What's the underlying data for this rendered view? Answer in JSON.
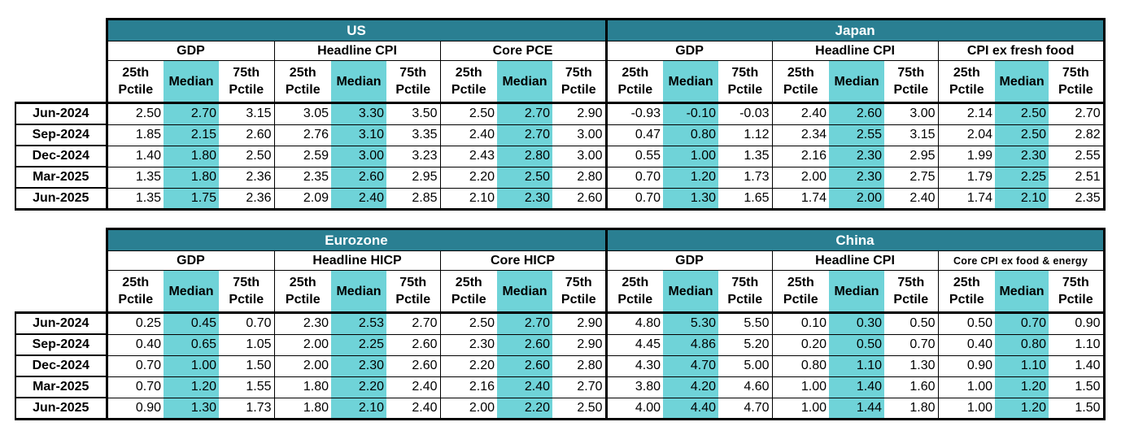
{
  "colors": {
    "region_header_bg": "#2a7f92",
    "median_highlight": "#6fd3d8"
  },
  "stat_labels": [
    "25th Pctile",
    "Median",
    "75th Pctile"
  ],
  "row_labels": [
    "Jun-2024",
    "Sep-2024",
    "Dec-2024",
    "Mar-2025",
    "Jun-2025"
  ],
  "tables": [
    {
      "regions": [
        {
          "name": "US",
          "groups": [
            {
              "name": "GDP",
              "rows": [
                [
                  "2.50",
                  "2.70",
                  "3.15"
                ],
                [
                  "1.85",
                  "2.15",
                  "2.60"
                ],
                [
                  "1.40",
                  "1.80",
                  "2.50"
                ],
                [
                  "1.35",
                  "1.80",
                  "2.36"
                ],
                [
                  "1.35",
                  "1.75",
                  "2.36"
                ]
              ]
            },
            {
              "name": "Headline CPI",
              "rows": [
                [
                  "3.05",
                  "3.30",
                  "3.50"
                ],
                [
                  "2.76",
                  "3.10",
                  "3.35"
                ],
                [
                  "2.59",
                  "3.00",
                  "3.23"
                ],
                [
                  "2.35",
                  "2.60",
                  "2.95"
                ],
                [
                  "2.09",
                  "2.40",
                  "2.85"
                ]
              ]
            },
            {
              "name": "Core PCE",
              "rows": [
                [
                  "2.50",
                  "2.70",
                  "2.90"
                ],
                [
                  "2.40",
                  "2.70",
                  "3.00"
                ],
                [
                  "2.43",
                  "2.80",
                  "3.00"
                ],
                [
                  "2.20",
                  "2.50",
                  "2.80"
                ],
                [
                  "2.10",
                  "2.30",
                  "2.60"
                ]
              ]
            }
          ]
        },
        {
          "name": "Japan",
          "groups": [
            {
              "name": "GDP",
              "rows": [
                [
                  "-0.93",
                  "-0.10",
                  "-0.03"
                ],
                [
                  "0.47",
                  "0.80",
                  "1.12"
                ],
                [
                  "0.55",
                  "1.00",
                  "1.35"
                ],
                [
                  "0.70",
                  "1.20",
                  "1.73"
                ],
                [
                  "0.70",
                  "1.30",
                  "1.65"
                ]
              ]
            },
            {
              "name": "Headline CPI",
              "rows": [
                [
                  "2.40",
                  "2.60",
                  "3.00"
                ],
                [
                  "2.34",
                  "2.55",
                  "3.15"
                ],
                [
                  "2.16",
                  "2.30",
                  "2.95"
                ],
                [
                  "2.00",
                  "2.30",
                  "2.75"
                ],
                [
                  "1.74",
                  "2.00",
                  "2.40"
                ]
              ]
            },
            {
              "name": "CPI ex fresh food",
              "rows": [
                [
                  "2.14",
                  "2.50",
                  "2.70"
                ],
                [
                  "2.04",
                  "2.50",
                  "2.82"
                ],
                [
                  "1.99",
                  "2.30",
                  "2.55"
                ],
                [
                  "1.79",
                  "2.25",
                  "2.51"
                ],
                [
                  "1.74",
                  "2.10",
                  "2.35"
                ]
              ]
            }
          ]
        }
      ]
    },
    {
      "regions": [
        {
          "name": "Eurozone",
          "groups": [
            {
              "name": "GDP",
              "rows": [
                [
                  "0.25",
                  "0.45",
                  "0.70"
                ],
                [
                  "0.40",
                  "0.65",
                  "1.05"
                ],
                [
                  "0.70",
                  "1.00",
                  "1.50"
                ],
                [
                  "0.70",
                  "1.20",
                  "1.55"
                ],
                [
                  "0.90",
                  "1.30",
                  "1.73"
                ]
              ]
            },
            {
              "name": "Headline HICP",
              "rows": [
                [
                  "2.30",
                  "2.53",
                  "2.70"
                ],
                [
                  "2.00",
                  "2.25",
                  "2.60"
                ],
                [
                  "2.00",
                  "2.30",
                  "2.60"
                ],
                [
                  "1.80",
                  "2.20",
                  "2.40"
                ],
                [
                  "1.80",
                  "2.10",
                  "2.40"
                ]
              ]
            },
            {
              "name": "Core HICP",
              "rows": [
                [
                  "2.50",
                  "2.70",
                  "2.90"
                ],
                [
                  "2.30",
                  "2.60",
                  "2.90"
                ],
                [
                  "2.20",
                  "2.60",
                  "2.80"
                ],
                [
                  "2.16",
                  "2.40",
                  "2.70"
                ],
                [
                  "2.00",
                  "2.20",
                  "2.50"
                ]
              ]
            }
          ]
        },
        {
          "name": "China",
          "groups": [
            {
              "name": "GDP",
              "rows": [
                [
                  "4.80",
                  "5.30",
                  "5.50"
                ],
                [
                  "4.45",
                  "4.86",
                  "5.20"
                ],
                [
                  "4.30",
                  "4.70",
                  "5.00"
                ],
                [
                  "3.80",
                  "4.20",
                  "4.60"
                ],
                [
                  "4.00",
                  "4.40",
                  "4.70"
                ]
              ]
            },
            {
              "name": "Headline CPI",
              "rows": [
                [
                  "0.10",
                  "0.30",
                  "0.50"
                ],
                [
                  "0.20",
                  "0.50",
                  "0.70"
                ],
                [
                  "0.80",
                  "1.10",
                  "1.30"
                ],
                [
                  "1.00",
                  "1.40",
                  "1.60"
                ],
                [
                  "1.00",
                  "1.44",
                  "1.80"
                ]
              ]
            },
            {
              "name": "Core CPI ex food & energy",
              "rows": [
                [
                  "0.50",
                  "0.70",
                  "0.90"
                ],
                [
                  "0.40",
                  "0.80",
                  "1.10"
                ],
                [
                  "0.90",
                  "1.10",
                  "1.40"
                ],
                [
                  "1.00",
                  "1.20",
                  "1.50"
                ],
                [
                  "1.00",
                  "1.20",
                  "1.50"
                ]
              ]
            }
          ]
        }
      ]
    }
  ]
}
